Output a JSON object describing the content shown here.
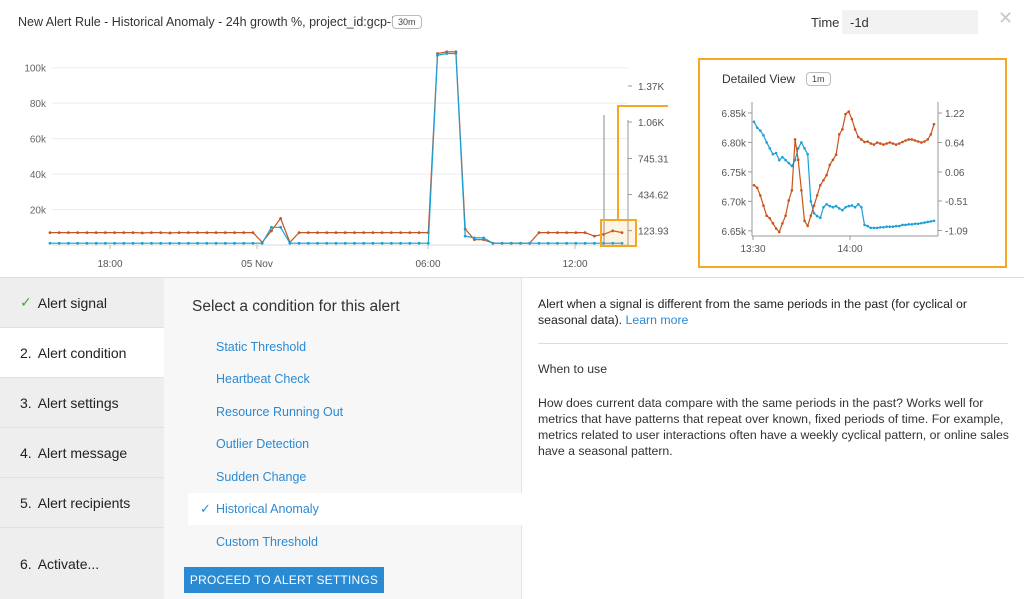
{
  "header": {
    "title": "New Alert Rule - Historical Anomaly - 24h growth %, project_id:gcp-i...",
    "badge": "30m",
    "time_label": "Time",
    "time_value": "-1d"
  },
  "colors": {
    "series_blue": "#1aa0d8",
    "series_orange": "#c8531c",
    "highlight": "#f5a623",
    "link": "#2a8ad4"
  },
  "chart_data": [
    {
      "type": "line",
      "title": "",
      "x_ticks": [
        "18:00",
        "05 Nov",
        "06:00",
        "12:00"
      ],
      "y_left_ticks": [
        "20k",
        "40k",
        "60k",
        "80k",
        "100k"
      ],
      "y_right_ticks": [
        "123.93",
        "434.62",
        "745.31",
        "1.06K",
        "1.37K"
      ],
      "y_left_range": [
        0,
        110000
      ],
      "y_right_range": [
        0,
        1680
      ],
      "grid": true,
      "series": [
        {
          "color": "#c8531c",
          "values": [
            7000,
            7000,
            7000,
            7000,
            7000,
            7000,
            7000,
            7000,
            7000,
            7000,
            6800,
            7000,
            7000,
            6800,
            7000,
            7000,
            7000,
            7000,
            7000,
            7000,
            7000,
            7000,
            7000,
            1500,
            8000,
            15000,
            1500,
            7000,
            7000,
            7000,
            7000,
            7000,
            7000,
            7000,
            7000,
            7000,
            7000,
            7000,
            7000,
            7000,
            7000,
            7000,
            108000,
            109000,
            109000,
            9000,
            3000,
            3000,
            1000,
            1000,
            1000,
            1000,
            1000,
            7000,
            7000,
            7000,
            7000,
            7000,
            7000,
            5000,
            6000,
            8000,
            7000
          ]
        },
        {
          "color": "#1aa0d8",
          "values": [
            1000,
            1000,
            1000,
            1000,
            1000,
            1000,
            1000,
            1000,
            1000,
            1000,
            1000,
            1000,
            1000,
            1000,
            1000,
            1000,
            1000,
            1000,
            1000,
            1000,
            1000,
            1000,
            1000,
            1000,
            10000,
            10000,
            1000,
            1000,
            1000,
            1000,
            1000,
            1000,
            1000,
            1000,
            1000,
            1000,
            1000,
            1000,
            1000,
            1000,
            1000,
            1000,
            107000,
            108000,
            108000,
            5000,
            4000,
            4000,
            1000,
            1000,
            1000,
            1000,
            1000,
            1000,
            1000,
            1000,
            1000,
            1000,
            1000,
            1000,
            1000,
            1000,
            1000
          ]
        }
      ]
    },
    {
      "type": "line",
      "title": "Detailed View",
      "badge": "1m",
      "x_ticks": [
        "13:30",
        "14:00"
      ],
      "y_left_ticks": [
        "6.65k",
        "6.70k",
        "6.75k",
        "6.80k",
        "6.85k"
      ],
      "y_right_ticks": [
        "-1.09",
        "-0.51",
        "0.06",
        "0.64",
        "1.22"
      ],
      "y_left_range": [
        6.648,
        6.855
      ],
      "y_right_range": [
        -1.12,
        1.28
      ],
      "grid": false,
      "series": [
        {
          "color": "#1aa0d8",
          "axis": "left",
          "values": [
            6.835,
            6.825,
            6.82,
            6.812,
            6.8,
            6.79,
            6.78,
            6.782,
            6.77,
            6.775,
            6.77,
            6.765,
            6.76,
            6.77,
            6.79,
            6.8,
            6.79,
            6.78,
            6.7,
            6.68,
            6.675,
            6.672,
            6.69,
            6.695,
            6.692,
            6.69,
            6.692,
            6.688,
            6.685,
            6.69,
            6.692,
            6.693,
            6.69,
            6.695,
            6.69,
            6.66,
            6.658,
            6.655,
            6.655,
            6.655,
            6.656,
            6.656,
            6.657,
            6.657,
            6.657,
            6.658,
            6.658,
            6.66,
            6.66,
            6.661,
            6.661,
            6.662,
            6.662,
            6.663,
            6.664,
            6.665,
            6.666,
            6.667
          ]
        },
        {
          "color": "#c8531c",
          "axis": "right",
          "values": [
            -0.2,
            -0.25,
            -0.4,
            -0.6,
            -0.8,
            -0.85,
            -0.95,
            -1.05,
            -1.12,
            -0.95,
            -0.8,
            -0.5,
            -0.3,
            0.7,
            0.3,
            -0.3,
            -0.9,
            -1.0,
            -0.8,
            -0.6,
            -0.4,
            -0.2,
            -0.1,
            0.0,
            0.2,
            0.3,
            0.4,
            0.8,
            0.9,
            1.2,
            1.25,
            1.1,
            0.9,
            0.75,
            0.7,
            0.65,
            0.66,
            0.62,
            0.6,
            0.64,
            0.62,
            0.6,
            0.62,
            0.64,
            0.62,
            0.6,
            0.62,
            0.65,
            0.68,
            0.7,
            0.7,
            0.68,
            0.66,
            0.64,
            0.66,
            0.7,
            0.8,
            1.0
          ]
        }
      ]
    }
  ],
  "steps": [
    {
      "num": "",
      "label": "Alert signal",
      "done": true
    },
    {
      "num": "2.",
      "label": "Alert condition",
      "active": true
    },
    {
      "num": "3.",
      "label": "Alert settings"
    },
    {
      "num": "4.",
      "label": "Alert message"
    },
    {
      "num": "5.",
      "label": "Alert recipients"
    },
    {
      "num": "6.",
      "label": "Activate..."
    }
  ],
  "condition": {
    "title": "Select a condition for this alert",
    "options": [
      "Static Threshold",
      "Heartbeat Check",
      "Resource Running Out",
      "Outlier Detection",
      "Sudden Change",
      "Historical Anomaly",
      "Custom Threshold"
    ],
    "selected": "Historical Anomaly",
    "proceed_label": "PROCEED TO ALERT SETTINGS"
  },
  "description": {
    "intro": "Alert when a signal is different from the same periods in the past (for cyclical or seasonal data).",
    "learn_more": "Learn more",
    "when_heading": "When to use",
    "when_body": "How does current data compare with the same periods in the past? Works well for metrics that have patterns that repeat over known, fixed periods of time. For example, metrics related to user interactions often have a weekly cyclical pattern, or online sales have a seasonal pattern."
  }
}
